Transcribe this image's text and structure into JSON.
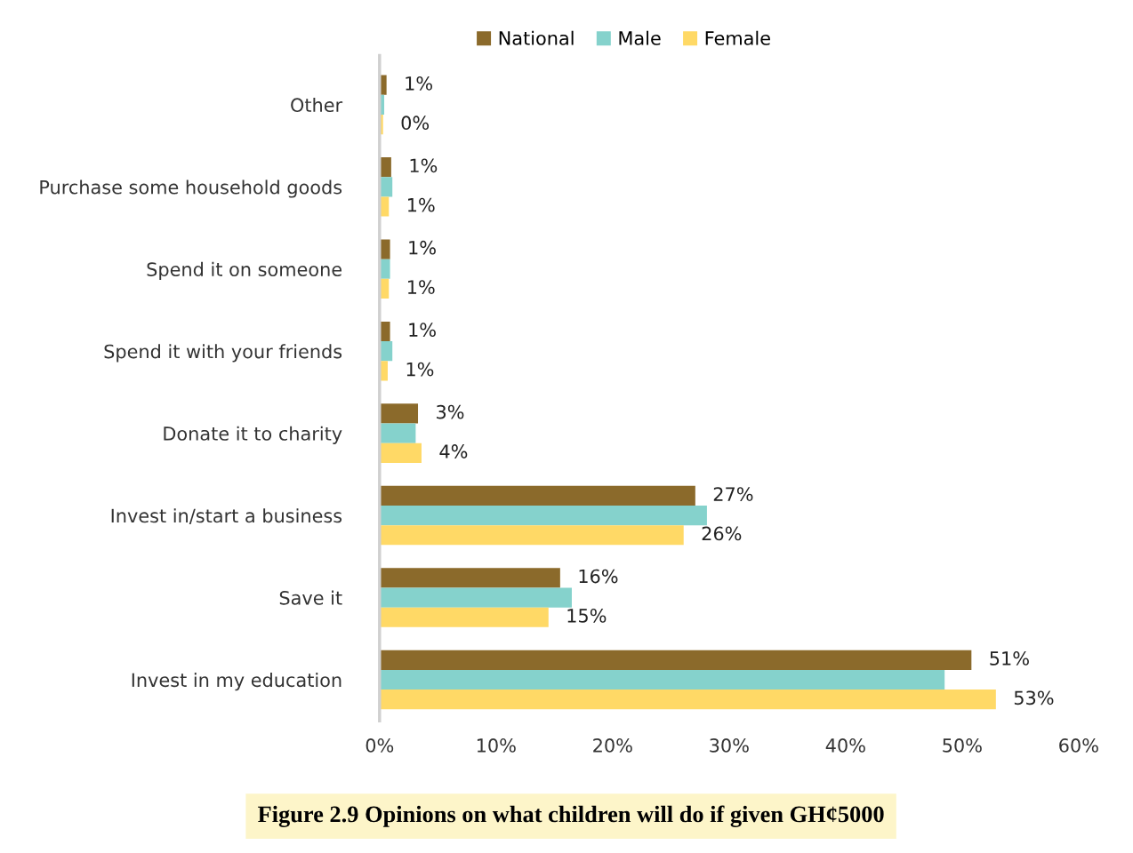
{
  "chart_data": {
    "type": "bar",
    "orientation": "horizontal",
    "title": "Figure 2.9 Opinions on what children will do if given GH¢5000",
    "categories": [
      "Other",
      "Purchase some household goods",
      "Spend it on someone",
      "Spend it with your friends",
      "Donate it to charity",
      "Invest in/start a business",
      "Save it",
      "Invest in my education"
    ],
    "series": [
      {
        "name": "National",
        "color": "#8b6a2b",
        "values": [
          0.6,
          1,
          0.9,
          0.9,
          3.3,
          27.1,
          15.5,
          50.8
        ],
        "value_labels": [
          "1%",
          "1%",
          "1%",
          "1%",
          "3%",
          "27%",
          "16%",
          "51%"
        ]
      },
      {
        "name": "Male",
        "color": "#85d2cc",
        "values": [
          0.4,
          1.1,
          0.9,
          1.1,
          3.1,
          28.1,
          16.5,
          48.5
        ]
      },
      {
        "name": "Female",
        "color": "#ffd966",
        "values": [
          0.3,
          0.8,
          0.8,
          0.7,
          3.6,
          26.1,
          14.5,
          52.9
        ],
        "value_labels": [
          "0%",
          "1%",
          "1%",
          "1%",
          "4%",
          "26%",
          "15%",
          "53%"
        ]
      }
    ],
    "xlim": [
      0,
      60
    ],
    "xticks": [
      {
        "value": 0,
        "label": "0%"
      },
      {
        "value": 10,
        "label": "10%"
      },
      {
        "value": 20,
        "label": "20%"
      },
      {
        "value": 30,
        "label": "30%"
      },
      {
        "value": 40,
        "label": "40%"
      },
      {
        "value": 50,
        "label": "50%"
      },
      {
        "value": 60,
        "label": "60%"
      }
    ],
    "grid": false,
    "legend": "top"
  }
}
